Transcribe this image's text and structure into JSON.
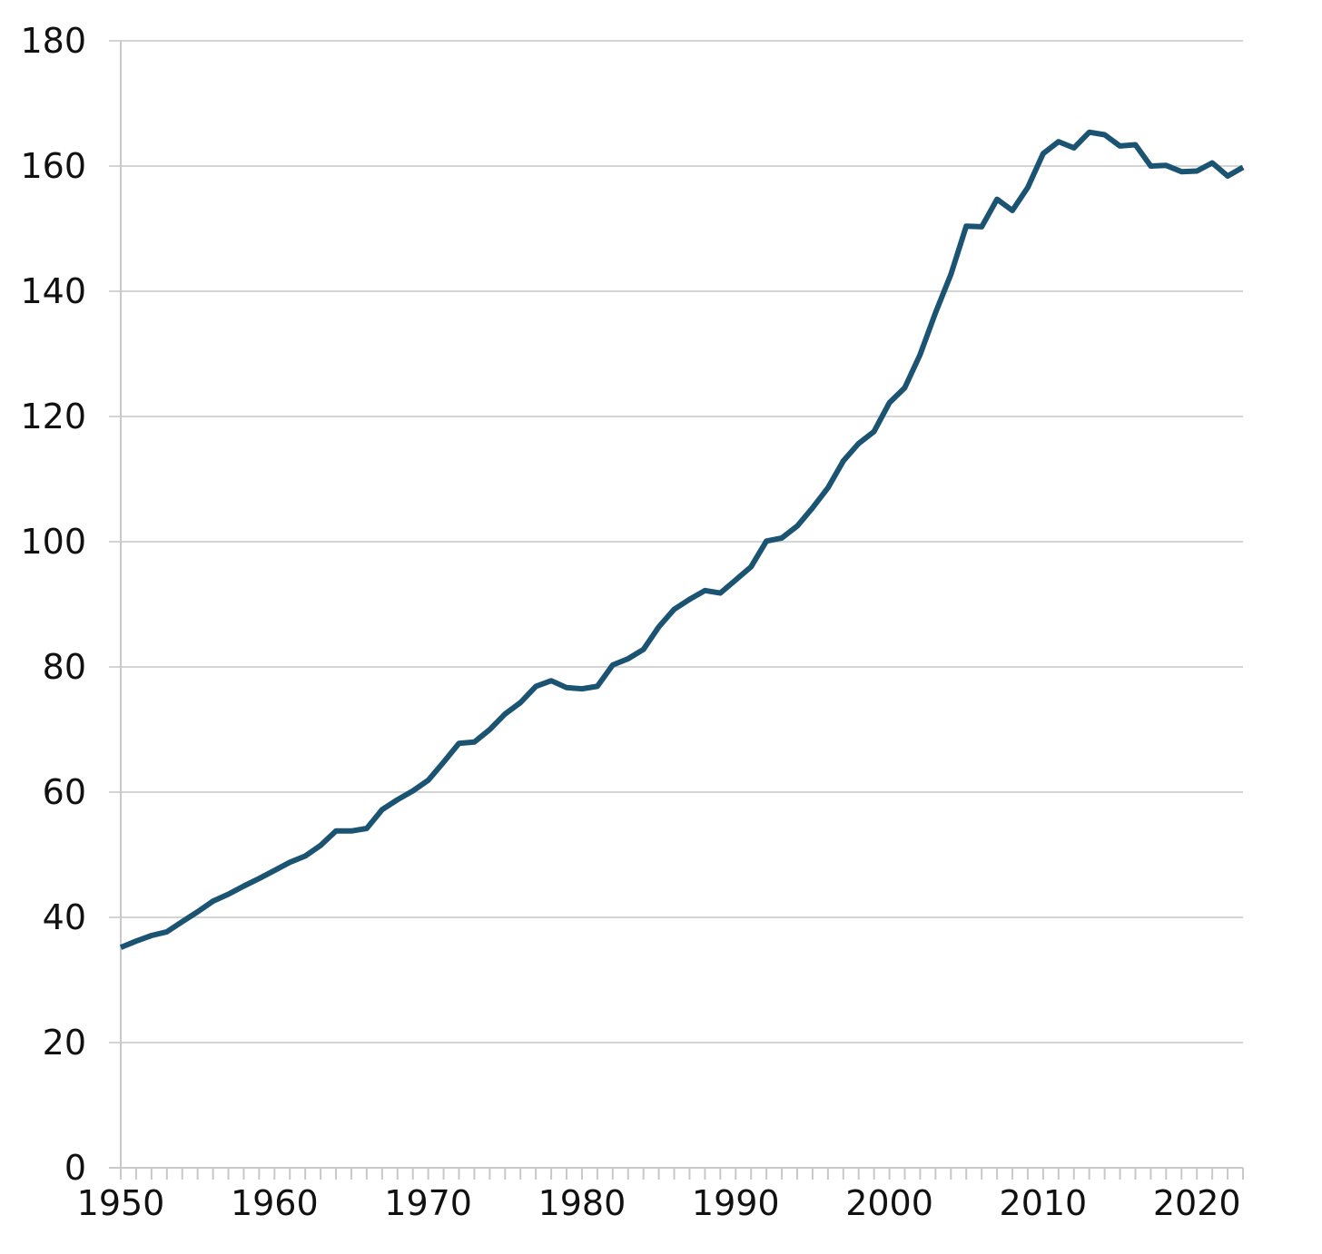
{
  "chart_data": {
    "type": "line",
    "title": "",
    "xlabel": "",
    "ylabel": "",
    "xlim": [
      1950,
      2023
    ],
    "ylim": [
      0,
      180
    ],
    "y_ticks": [
      0,
      20,
      40,
      60,
      80,
      100,
      120,
      140,
      160,
      180
    ],
    "x_ticks": [
      1950,
      1960,
      1970,
      1980,
      1990,
      2000,
      2010,
      2020
    ],
    "grid": "horizontal",
    "legend": "none",
    "series": [
      {
        "color": "#1b5372",
        "x": [
          1950,
          1951,
          1952,
          1953,
          1954,
          1955,
          1956,
          1957,
          1958,
          1959,
          1960,
          1961,
          1962,
          1963,
          1964,
          1965,
          1966,
          1967,
          1968,
          1969,
          1970,
          1971,
          1972,
          1973,
          1974,
          1975,
          1976,
          1977,
          1978,
          1979,
          1980,
          1981,
          1982,
          1983,
          1984,
          1985,
          1986,
          1987,
          1988,
          1989,
          1990,
          1991,
          1992,
          1993,
          1994,
          1995,
          1996,
          1997,
          1998,
          1999,
          2000,
          2001,
          2002,
          2003,
          2004,
          2005,
          2006,
          2007,
          2008,
          2009,
          2010,
          2011,
          2012,
          2013,
          2014,
          2015,
          2016,
          2017,
          2018,
          2019,
          2020,
          2021,
          2022,
          2023
        ],
        "y": [
          35.2,
          36.2,
          37.1,
          37.7,
          39.3,
          40.9,
          42.6,
          43.7,
          45.0,
          46.2,
          47.5,
          48.8,
          49.8,
          51.5,
          53.8,
          53.8,
          54.2,
          57.2,
          58.8,
          60.2,
          61.9,
          64.8,
          67.8,
          68.0,
          70.0,
          72.5,
          74.3,
          76.9,
          77.8,
          76.7,
          76.5,
          76.9,
          80.3,
          81.3,
          82.8,
          86.4,
          89.2,
          90.8,
          92.2,
          91.8,
          93.9,
          96.0,
          100.1,
          100.6,
          102.5,
          105.4,
          108.6,
          112.9,
          115.7,
          117.6,
          122.2,
          124.6,
          129.9,
          136.6,
          142.7,
          150.4,
          150.3,
          154.7,
          152.9,
          156.6,
          162.0,
          163.9,
          162.9,
          165.4,
          165.0,
          163.2,
          163.4,
          160.0,
          160.1,
          159.1,
          159.2,
          160.5,
          158.4,
          159.8
        ]
      }
    ]
  },
  "colors": {
    "line": "#1b5372",
    "grid": "#d4d4d4",
    "axis": "#c8c8c8",
    "text": "#111111"
  }
}
